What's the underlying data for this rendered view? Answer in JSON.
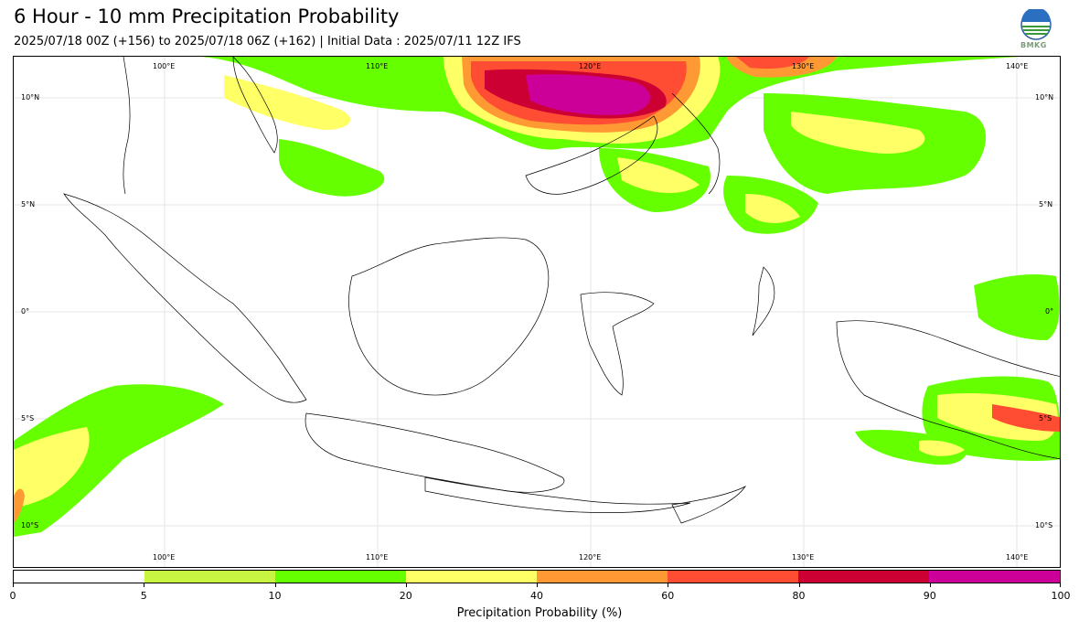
{
  "header": {
    "title": "6 Hour - 10 mm Precipitation Probability",
    "subtitle": "2025/07/18 00Z (+156) to 2025/07/18 06Z (+162) | Initial Data : 2025/07/11 12Z IFS",
    "logo_text": "BMKG"
  },
  "map": {
    "lon_labels_top": [
      "100°E",
      "110°E",
      "120°E",
      "130°E",
      "140°E"
    ],
    "lon_labels_bottom": [
      "100°E",
      "110°E",
      "120°E",
      "130°E",
      "140°E"
    ],
    "lat_labels_left": [
      "10°N",
      "5°N",
      "0°",
      "5°S",
      "10°S"
    ],
    "lat_labels_right": [
      "10°N",
      "5°N",
      "0°",
      "5°S",
      "10°S"
    ]
  },
  "colorbar": {
    "title": "Precipitation Probability (%)",
    "ticks": [
      "0",
      "5",
      "10",
      "20",
      "40",
      "60",
      "80",
      "90",
      "100"
    ],
    "colors": [
      "#ffffff",
      "#c8f542",
      "#66ff00",
      "#ffff66",
      "#ff9933",
      "#ff4d33",
      "#cc0033",
      "#cc0099"
    ]
  }
}
